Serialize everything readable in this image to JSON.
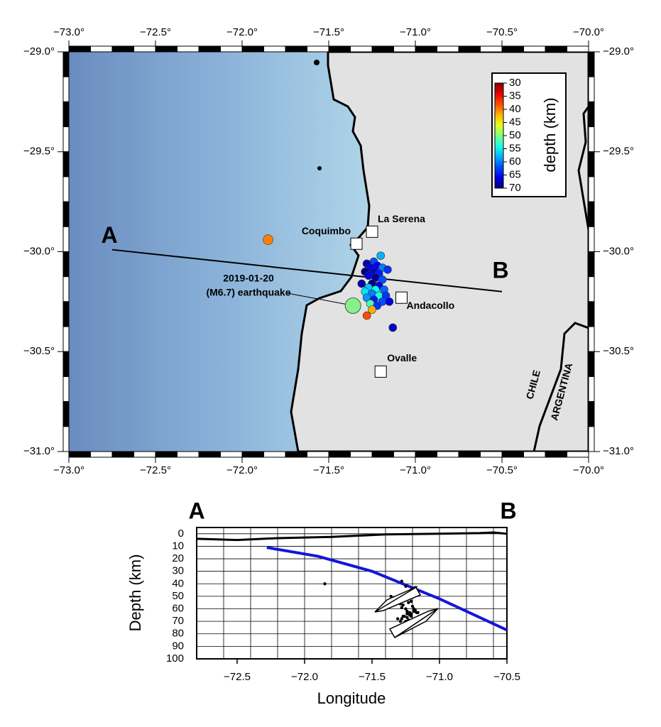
{
  "map": {
    "xlim": [
      -73.0,
      -70.0
    ],
    "ylim": [
      -31.0,
      -29.0
    ],
    "xticks": [
      {
        "value": -73.0,
        "label": "−73.0°"
      },
      {
        "value": -72.5,
        "label": "−72.5°"
      },
      {
        "value": -72.0,
        "label": "−72.0°"
      },
      {
        "value": -71.5,
        "label": "−71.5°"
      },
      {
        "value": -71.0,
        "label": "−71.0°"
      },
      {
        "value": -70.5,
        "label": "−70.5°"
      },
      {
        "value": -70.0,
        "label": "−70.0°"
      }
    ],
    "yticks": [
      {
        "value": -29.0,
        "label": "−29.0°"
      },
      {
        "value": -29.5,
        "label": "−29.5°"
      },
      {
        "value": -30.0,
        "label": "−30.0°"
      },
      {
        "value": -30.5,
        "label": "−30.5°"
      },
      {
        "value": -31.0,
        "label": "−31.0°"
      }
    ],
    "places": [
      {
        "name": "La Serena",
        "lon": -71.25,
        "lat": -29.9
      },
      {
        "name": "Coquimbo",
        "lon": -71.34,
        "lat": -29.96
      },
      {
        "name": "Andacollo",
        "lon": -71.08,
        "lat": -30.23
      },
      {
        "name": "Ovalle",
        "lon": -71.2,
        "lat": -30.6
      }
    ],
    "profile": {
      "start": {
        "label": "A",
        "lon": -72.75,
        "lat": -29.99
      },
      "end": {
        "label": "B",
        "lon": -70.5,
        "lat": -30.2
      }
    },
    "mainshock": {
      "date": "2019-01-20",
      "event": "(M6.7) earthquake",
      "lon": -71.36,
      "lat": -30.27,
      "depth": 50
    },
    "events": [
      {
        "lon": -71.2,
        "lat": -30.02,
        "depth": 58
      },
      {
        "lon": -71.24,
        "lat": -30.05,
        "depth": 62
      },
      {
        "lon": -71.28,
        "lat": -30.06,
        "depth": 68
      },
      {
        "lon": -71.22,
        "lat": -30.07,
        "depth": 65
      },
      {
        "lon": -71.26,
        "lat": -30.08,
        "depth": 66
      },
      {
        "lon": -71.19,
        "lat": -30.08,
        "depth": 60
      },
      {
        "lon": -71.29,
        "lat": -30.1,
        "depth": 70
      },
      {
        "lon": -71.24,
        "lat": -30.1,
        "depth": 67
      },
      {
        "lon": -71.21,
        "lat": -30.11,
        "depth": 64
      },
      {
        "lon": -71.16,
        "lat": -30.09,
        "depth": 63
      },
      {
        "lon": -71.27,
        "lat": -30.12,
        "depth": 66
      },
      {
        "lon": -71.23,
        "lat": -30.13,
        "depth": 69
      },
      {
        "lon": -71.19,
        "lat": -30.14,
        "depth": 62
      },
      {
        "lon": -71.31,
        "lat": -30.16,
        "depth": 68
      },
      {
        "lon": -71.25,
        "lat": -30.16,
        "depth": 70
      },
      {
        "lon": -71.21,
        "lat": -30.17,
        "depth": 66
      },
      {
        "lon": -71.27,
        "lat": -30.18,
        "depth": 57
      },
      {
        "lon": -71.23,
        "lat": -30.19,
        "depth": 55
      },
      {
        "lon": -71.18,
        "lat": -30.19,
        "depth": 61
      },
      {
        "lon": -71.29,
        "lat": -30.2,
        "depth": 56
      },
      {
        "lon": -71.25,
        "lat": -30.21,
        "depth": 60
      },
      {
        "lon": -71.21,
        "lat": -30.22,
        "depth": 54
      },
      {
        "lon": -71.17,
        "lat": -30.22,
        "depth": 63
      },
      {
        "lon": -71.28,
        "lat": -30.23,
        "depth": 59
      },
      {
        "lon": -71.24,
        "lat": -30.24,
        "depth": 64
      },
      {
        "lon": -71.19,
        "lat": -30.25,
        "depth": 62
      },
      {
        "lon": -71.26,
        "lat": -30.26,
        "depth": 52
      },
      {
        "lon": -71.22,
        "lat": -30.27,
        "depth": 63
      },
      {
        "lon": -71.15,
        "lat": -30.25,
        "depth": 66
      },
      {
        "lon": -71.25,
        "lat": -30.29,
        "depth": 42
      },
      {
        "lon": -71.28,
        "lat": -30.32,
        "depth": 38
      },
      {
        "lon": -71.13,
        "lat": -30.38,
        "depth": 67
      },
      {
        "lon": -71.85,
        "lat": -29.94,
        "depth": 40
      }
    ],
    "countries": [
      "CHILE",
      "ARGENTINA"
    ],
    "colorbar": {
      "label": "depth (km)",
      "lim": [
        30,
        70
      ],
      "ticks": [
        30,
        35,
        40,
        45,
        50,
        55,
        60,
        65,
        70
      ]
    }
  },
  "section": {
    "start_label": "A",
    "end_label": "B",
    "xlabel": "Longitude",
    "ylabel": "Depth (km)",
    "xlim": [
      -72.8,
      -70.5
    ],
    "ylim": [
      -5,
      100
    ],
    "xticks": [
      {
        "value": -72.5,
        "label": "−72.5"
      },
      {
        "value": -72.0,
        "label": "−72.0"
      },
      {
        "value": -71.5,
        "label": "−71.5"
      },
      {
        "value": -71.0,
        "label": "−71.0"
      },
      {
        "value": -70.5,
        "label": "−70.5"
      }
    ],
    "yticks": [
      0,
      10,
      20,
      30,
      40,
      50,
      60,
      70,
      80,
      90,
      100
    ],
    "topography": {
      "lon": [
        -72.8,
        -72.5,
        -72.2,
        -71.8,
        -71.4,
        -71.0,
        -70.7,
        -70.6,
        -70.5
      ],
      "depth": [
        4,
        5,
        3.5,
        2.5,
        0.5,
        0,
        -0.5,
        -1,
        0
      ]
    },
    "slab": {
      "lon": [
        -72.28,
        -71.9,
        -71.5,
        -71.0,
        -70.5
      ],
      "depth": [
        11,
        18,
        30,
        52,
        77
      ]
    }
  }
}
